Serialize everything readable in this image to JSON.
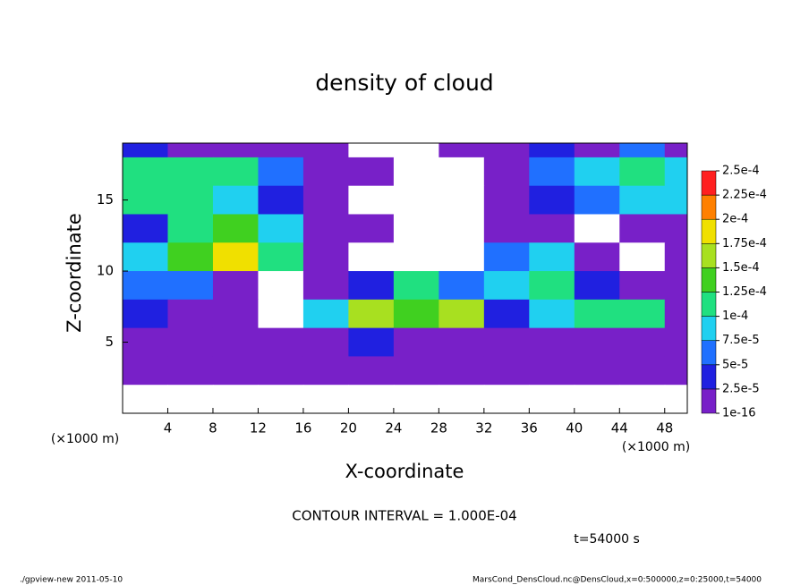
{
  "chart_data": {
    "type": "heatmap",
    "title": "density of cloud",
    "x_label": "X-coordinate",
    "y_label": "Z-coordinate",
    "x_unit_label": "(×1000 m)",
    "y_unit_label": "(×1000 m)",
    "annotation": "CONTOUR INTERVAL = 1.000E-04",
    "time_label": "t=54000 s",
    "footer_left": "./gpview-new  2011-05-10",
    "footer_right": "MarsCond_DensCloud.nc@DensCloud,x=0:500000,z=0:25000,t=54000",
    "xlim": [
      0,
      50
    ],
    "ylim": [
      0,
      19
    ],
    "xticks": [
      4,
      8,
      12,
      16,
      20,
      24,
      28,
      32,
      36,
      40,
      44,
      48
    ],
    "yticks": [
      5,
      10,
      15
    ],
    "x": [
      2,
      6,
      10,
      14,
      18,
      22,
      26,
      30,
      34,
      38,
      42,
      46,
      50
    ],
    "y": [
      19,
      17,
      15,
      13,
      11,
      9,
      7,
      5,
      3,
      1
    ],
    "z": [
      [
        3e-05,
        2e-05,
        1e-05,
        1e-05,
        1e-05,
        0,
        0,
        1e-05,
        2e-05,
        3e-05,
        2e-05,
        5e-05,
        1e-05
      ],
      [
        0.00011,
        0.00012,
        0.0001,
        6e-05,
        1e-05,
        1e-05,
        0,
        0,
        1e-05,
        6e-05,
        8e-05,
        0.0001,
        9e-05
      ],
      [
        0.00012,
        0.0001,
        8e-05,
        3e-05,
        1e-05,
        0,
        0,
        0,
        1e-05,
        4e-05,
        7e-05,
        9e-05,
        8e-05
      ],
      [
        3e-05,
        0.00012,
        0.00014,
        9e-05,
        2e-05,
        1e-05,
        0,
        0,
        1e-05,
        1e-05,
        0,
        2e-05,
        1e-05
      ],
      [
        8e-05,
        0.00014,
        0.00018,
        0.00012,
        2e-05,
        0,
        0,
        0,
        6e-05,
        8e-05,
        2e-05,
        0,
        1e-05
      ],
      [
        7e-05,
        6e-05,
        1e-05,
        0,
        1e-05,
        3e-05,
        0.00011,
        5e-05,
        8e-05,
        0.0001,
        3e-05,
        1e-05,
        2e-05
      ],
      [
        3e-05,
        2e-05,
        1e-05,
        0,
        8e-05,
        0.00016,
        0.00014,
        0.00015,
        3e-05,
        9e-05,
        0.0001,
        0.00012,
        2e-05
      ],
      [
        1e-05,
        1e-05,
        1e-05,
        1e-05,
        2e-05,
        4e-05,
        2e-05,
        1e-05,
        1e-05,
        1e-05,
        1e-05,
        1e-05,
        1e-05
      ],
      [
        1e-05,
        1e-05,
        1e-05,
        1e-05,
        1e-05,
        1e-05,
        1e-05,
        1e-05,
        1e-05,
        1e-05,
        1e-05,
        1e-05,
        1e-05
      ],
      [
        0,
        0,
        0,
        0,
        0,
        0,
        0,
        0,
        0,
        0,
        0,
        0,
        0
      ]
    ],
    "colorbar_ticks": [
      {
        "value": 1e-16,
        "label": "1e-16"
      },
      {
        "value": 2.5e-05,
        "label": "2.5e-5"
      },
      {
        "value": 5e-05,
        "label": "5e-5"
      },
      {
        "value": 7.5e-05,
        "label": "7.5e-5"
      },
      {
        "value": 0.0001,
        "label": "1e-4"
      },
      {
        "value": 0.000125,
        "label": "1.25e-4"
      },
      {
        "value": 0.00015,
        "label": "1.5e-4"
      },
      {
        "value": 0.000175,
        "label": "1.75e-4"
      },
      {
        "value": 0.0002,
        "label": "2e-4"
      },
      {
        "value": 0.000225,
        "label": "2.25e-4"
      },
      {
        "value": 0.00025,
        "label": "2.5e-4"
      }
    ],
    "colors": [
      "#7820c8",
      "#2020e0",
      "#2070ff",
      "#20d0f0",
      "#20e080",
      "#40d020",
      "#a8e020",
      "#f0e000",
      "#ff8000",
      "#ff2020"
    ]
  }
}
